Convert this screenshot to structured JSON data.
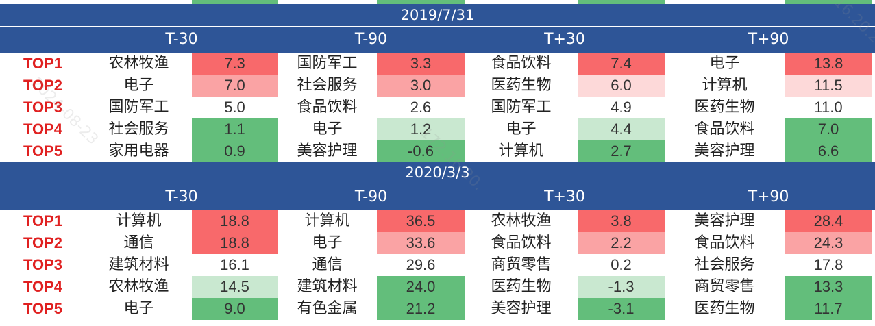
{
  "colors": {
    "header_bg": "#2e5597",
    "rank_text": "#e02020",
    "high_red": "#f8696b",
    "mid_red": "#faa3a4",
    "low_red": "#fdd9d9",
    "neutral": "#ffffff",
    "low_green": "#c9e8d0",
    "high_green": "#63be7b"
  },
  "sections": [
    {
      "date": "2019/7/31",
      "headers": [
        "T-30",
        "T-90",
        "T+30",
        "T+90"
      ],
      "rows": [
        {
          "rank": "TOP1",
          "cells": [
            {
              "name": "农林牧渔",
              "value": "7.3"
            },
            {
              "name": "国防军工",
              "value": "3.3"
            },
            {
              "name": "食品饮料",
              "value": "7.4"
            },
            {
              "name": "电子",
              "value": "13.8"
            }
          ]
        },
        {
          "rank": "TOP2",
          "cells": [
            {
              "name": "电子",
              "value": "7.0"
            },
            {
              "name": "社会服务",
              "value": "3.0"
            },
            {
              "name": "医药生物",
              "value": "6.0"
            },
            {
              "name": "计算机",
              "value": "11.5"
            }
          ]
        },
        {
          "rank": "TOP3",
          "cells": [
            {
              "name": "国防军工",
              "value": "5.0"
            },
            {
              "name": "食品饮料",
              "value": "2.6"
            },
            {
              "name": "国防军工",
              "value": "4.9"
            },
            {
              "name": "医药生物",
              "value": "11.0"
            }
          ]
        },
        {
          "rank": "TOP4",
          "cells": [
            {
              "name": "社会服务",
              "value": "1.1"
            },
            {
              "name": "电子",
              "value": "1.2"
            },
            {
              "name": "电子",
              "value": "4.4"
            },
            {
              "name": "食品饮料",
              "value": "7.0"
            }
          ]
        },
        {
          "rank": "TOP5",
          "cells": [
            {
              "name": "家用电器",
              "value": "0.9"
            },
            {
              "name": "美容护理",
              "value": "-0.6"
            },
            {
              "name": "计算机",
              "value": "2.7"
            },
            {
              "name": "美容护理",
              "value": "6.6"
            }
          ]
        }
      ]
    },
    {
      "date": "2020/3/3",
      "headers": [
        "T-30",
        "T-90",
        "T+30",
        "T+90"
      ],
      "rows": [
        {
          "rank": "TOP1",
          "cells": [
            {
              "name": "计算机",
              "value": "18.8"
            },
            {
              "name": "计算机",
              "value": "36.5"
            },
            {
              "name": "农林牧渔",
              "value": "3.8"
            },
            {
              "name": "美容护理",
              "value": "28.4"
            }
          ]
        },
        {
          "rank": "TOP2",
          "cells": [
            {
              "name": "通信",
              "value": "18.8"
            },
            {
              "name": "电子",
              "value": "33.6"
            },
            {
              "name": "食品饮料",
              "value": "2.2"
            },
            {
              "name": "食品饮料",
              "value": "24.3"
            }
          ]
        },
        {
          "rank": "TOP3",
          "cells": [
            {
              "name": "建筑材料",
              "value": "16.1"
            },
            {
              "name": "通信",
              "value": "29.6"
            },
            {
              "name": "商贸零售",
              "value": "0.2"
            },
            {
              "name": "社会服务",
              "value": "17.8"
            }
          ]
        },
        {
          "rank": "TOP4",
          "cells": [
            {
              "name": "农林牧渔",
              "value": "14.5"
            },
            {
              "name": "建筑材料",
              "value": "24.0"
            },
            {
              "name": "医药生物",
              "value": "-1.3"
            },
            {
              "name": "商贸零售",
              "value": "13.3"
            }
          ]
        },
        {
          "rank": "TOP5",
          "cells": [
            {
              "name": "电子",
              "value": "9.0"
            },
            {
              "name": "有色金属",
              "value": "21.2"
            },
            {
              "name": "美容护理",
              "value": "-3.1"
            },
            {
              "name": "医药生物",
              "value": "11.7"
            }
          ]
        }
      ]
    }
  ]
}
